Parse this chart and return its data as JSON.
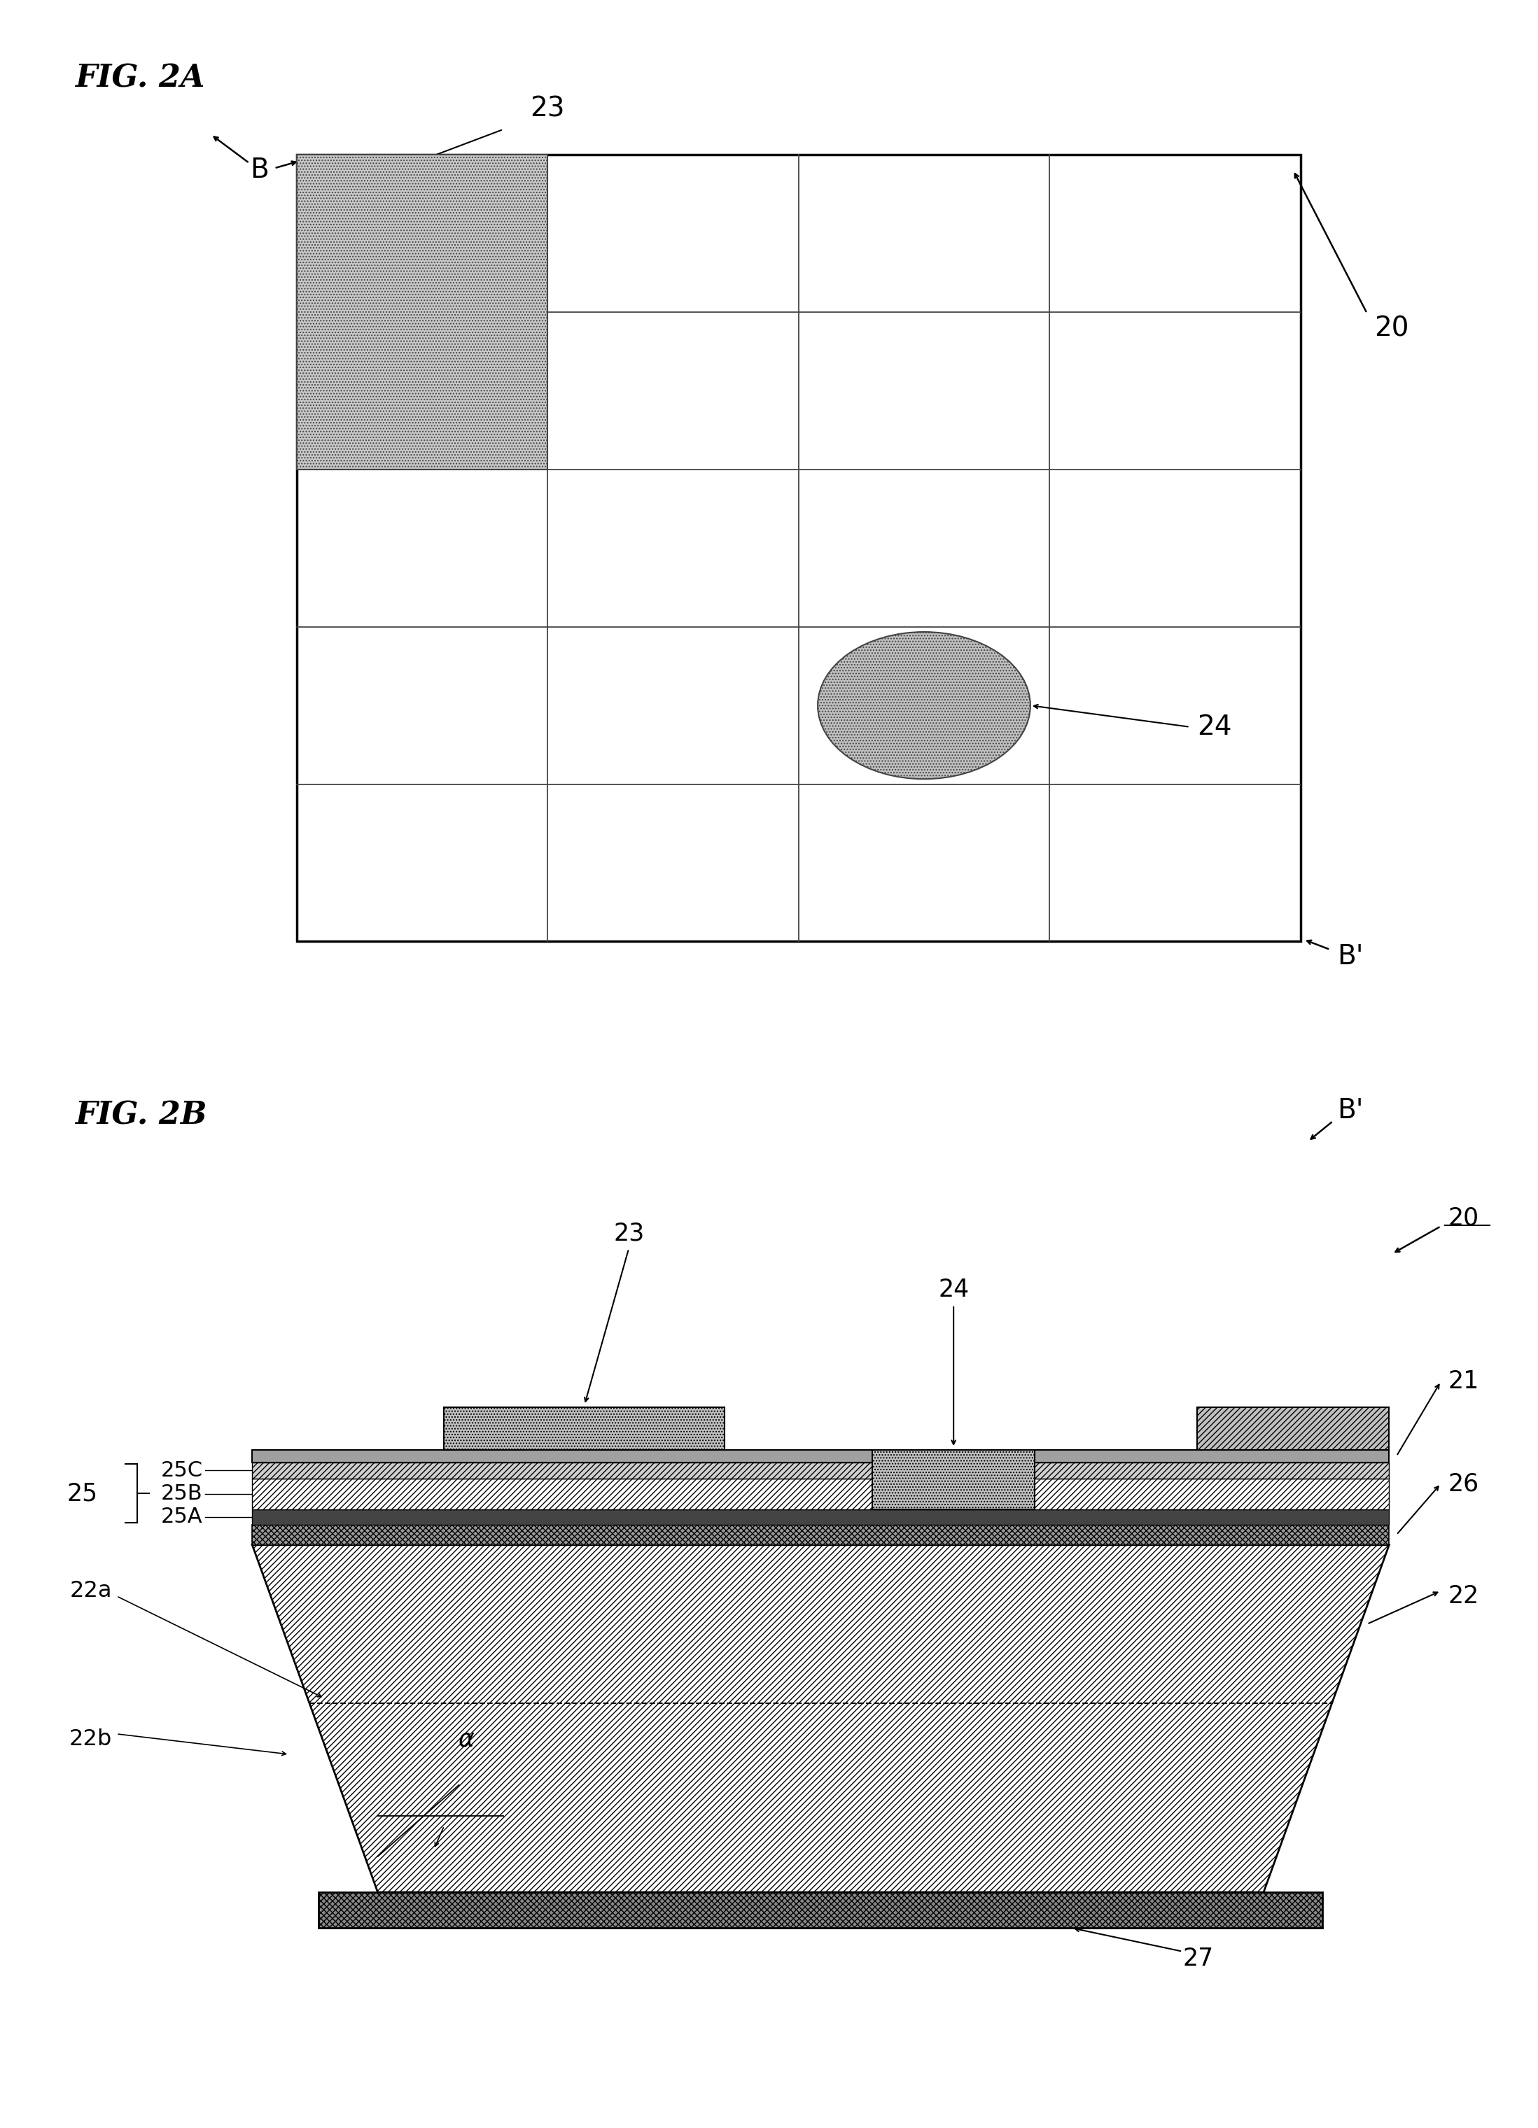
{
  "fig_title_a": "FIG. 2A",
  "fig_title_b": "FIG. 2B",
  "bg_color": "#ffffff",
  "line_color": "#000000",
  "grid_line_color": "#444444",
  "dot_hatch": "....",
  "diag_hatch": "////",
  "label_23": "23",
  "label_24": "24",
  "label_20": "20",
  "label_B": "B",
  "label_Bp": "B'",
  "label_21": "21",
  "label_22": "22",
  "label_22a": "22a",
  "label_22b": "22b",
  "label_25": "25",
  "label_25A": "25A",
  "label_25B": "25B",
  "label_25C": "25C",
  "label_26": "26",
  "label_27": "27",
  "label_alpha": "α"
}
